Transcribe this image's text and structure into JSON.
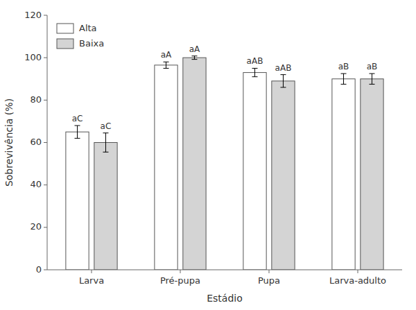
{
  "chart_data": {
    "type": "bar",
    "categories": [
      "Larva",
      "Pré-pupa",
      "Pupa",
      "Larva-adulto"
    ],
    "series": [
      {
        "name": "Alta",
        "color": "#ffffff",
        "values": [
          65.0,
          96.5,
          93.0,
          90.0
        ],
        "errors": [
          3.0,
          1.5,
          2.0,
          2.5
        ],
        "annotations": [
          "aC",
          "aA",
          "aAB",
          "aB"
        ]
      },
      {
        "name": "Baixa",
        "color": "#d4d4d4",
        "values": [
          60.0,
          100.0,
          89.0,
          90.0
        ],
        "errors": [
          4.5,
          0.8,
          3.0,
          2.5
        ],
        "annotations": [
          "aC",
          "aA",
          "aAB",
          "aB"
        ]
      }
    ],
    "xlabel": "Estádio",
    "ylabel": "Sobrevivência (%)",
    "ylim": [
      0,
      120
    ],
    "yticks": [
      0,
      20,
      40,
      60,
      80,
      100,
      120
    ],
    "grid": false,
    "legend": "upper left"
  }
}
